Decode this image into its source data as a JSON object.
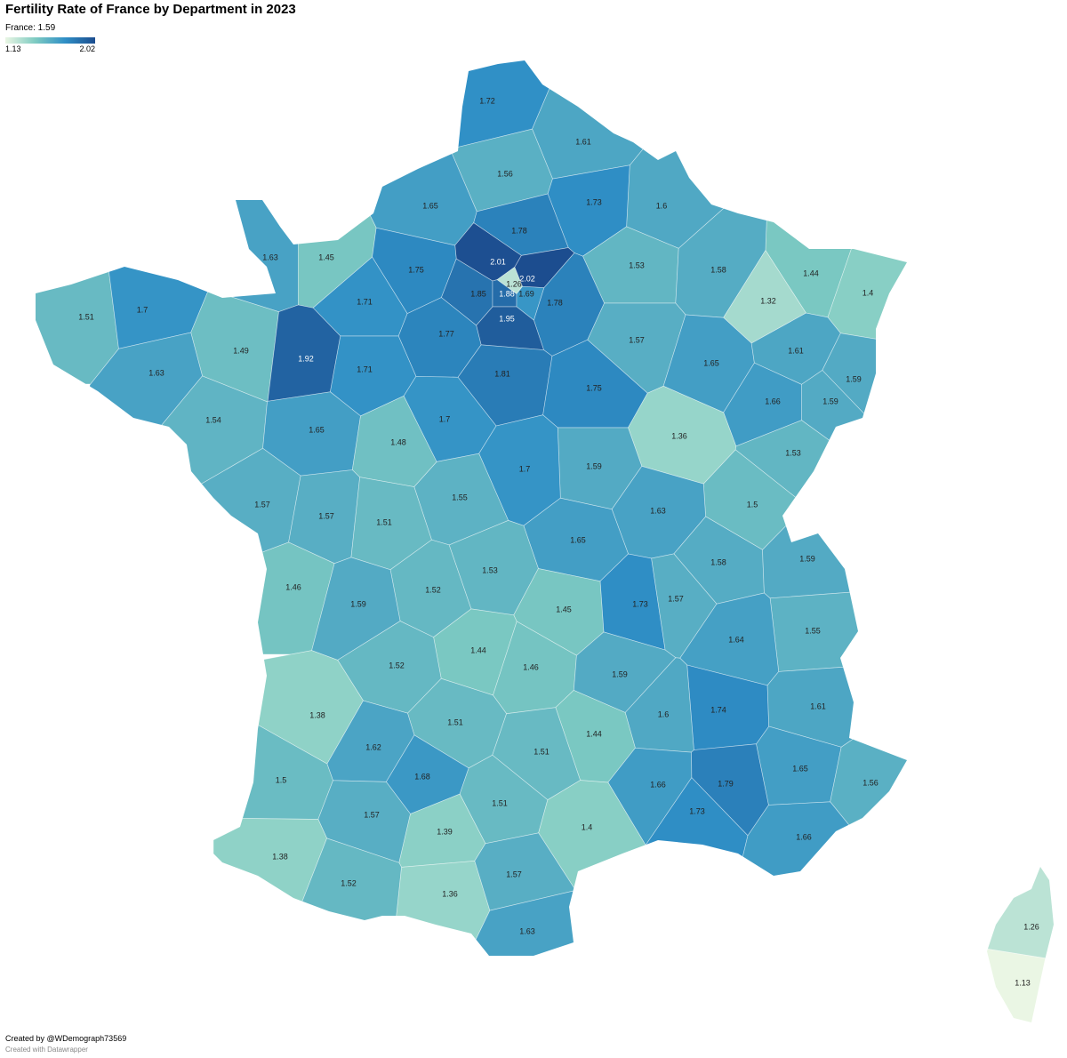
{
  "chart_data": {
    "type": "choropleth",
    "title": "Fertility Rate of France by Department in 2023",
    "subtitle": "France: 1.59",
    "legend": {
      "min": 1.13,
      "max": 2.02
    },
    "colorscale": [
      "#eaf6e4",
      "#7ecbc2",
      "#2f8fc6",
      "#1c4d8f"
    ],
    "values": [
      1.72,
      1.61,
      1.56,
      1.73,
      1.65,
      1.6,
      1.78,
      1.63,
      1.45,
      1.53,
      1.44,
      1.58,
      2.01,
      1.4,
      1.75,
      1.85,
      1.26,
      2.02,
      1.88,
      1.69,
      1.32,
      1.78,
      1.51,
      1.7,
      1.71,
      1.95,
      1.77,
      1.57,
      1.49,
      1.92,
      1.65,
      1.61,
      1.63,
      1.71,
      1.81,
      1.75,
      1.59,
      1.66,
      1.59,
      1.54,
      1.65,
      1.48,
      1.7,
      1.36,
      1.53,
      1.59,
      1.7,
      1.55,
      1.5,
      1.57,
      1.57,
      1.51,
      1.63,
      1.65,
      1.58,
      1.59,
      1.46,
      1.52,
      1.53,
      1.59,
      1.73,
      1.57,
      1.45,
      1.55,
      1.64,
      1.44,
      1.52,
      1.46,
      1.59,
      1.74,
      1.61,
      1.6,
      1.38,
      1.51,
      1.44,
      1.62,
      1.51,
      1.68,
      1.66,
      1.79,
      1.65,
      1.56,
      1.5,
      1.57,
      1.51,
      1.73,
      1.39,
      1.4,
      1.66,
      1.38,
      1.52,
      1.36,
      1.57,
      1.63,
      1.26,
      1.13
    ],
    "credit": "Created by @WDemograph73569",
    "source": "Created with Datawrapper"
  }
}
